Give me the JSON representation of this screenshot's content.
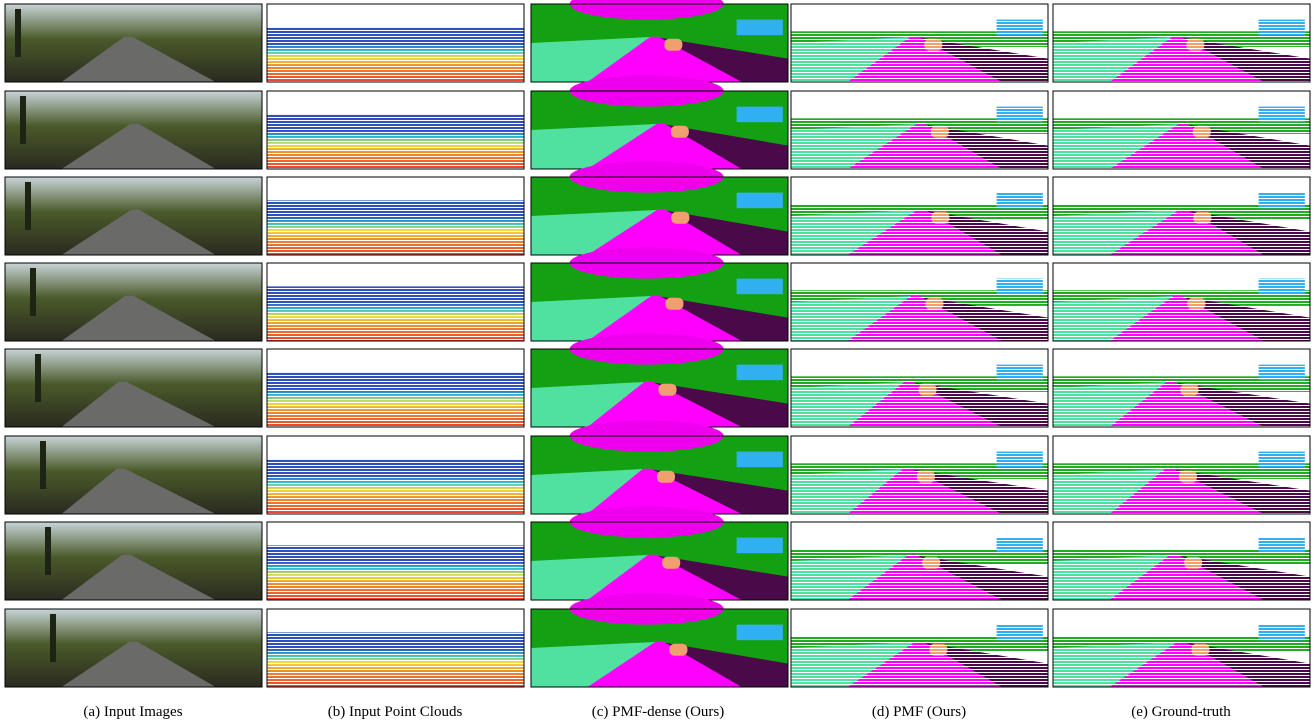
{
  "captions": [
    "(a) Input Images",
    "(b) Input Point Clouds",
    "(c) PMF-dense (Ours)",
    "(d) PMF (Ours)",
    "(e) Ground-truth"
  ]
}
